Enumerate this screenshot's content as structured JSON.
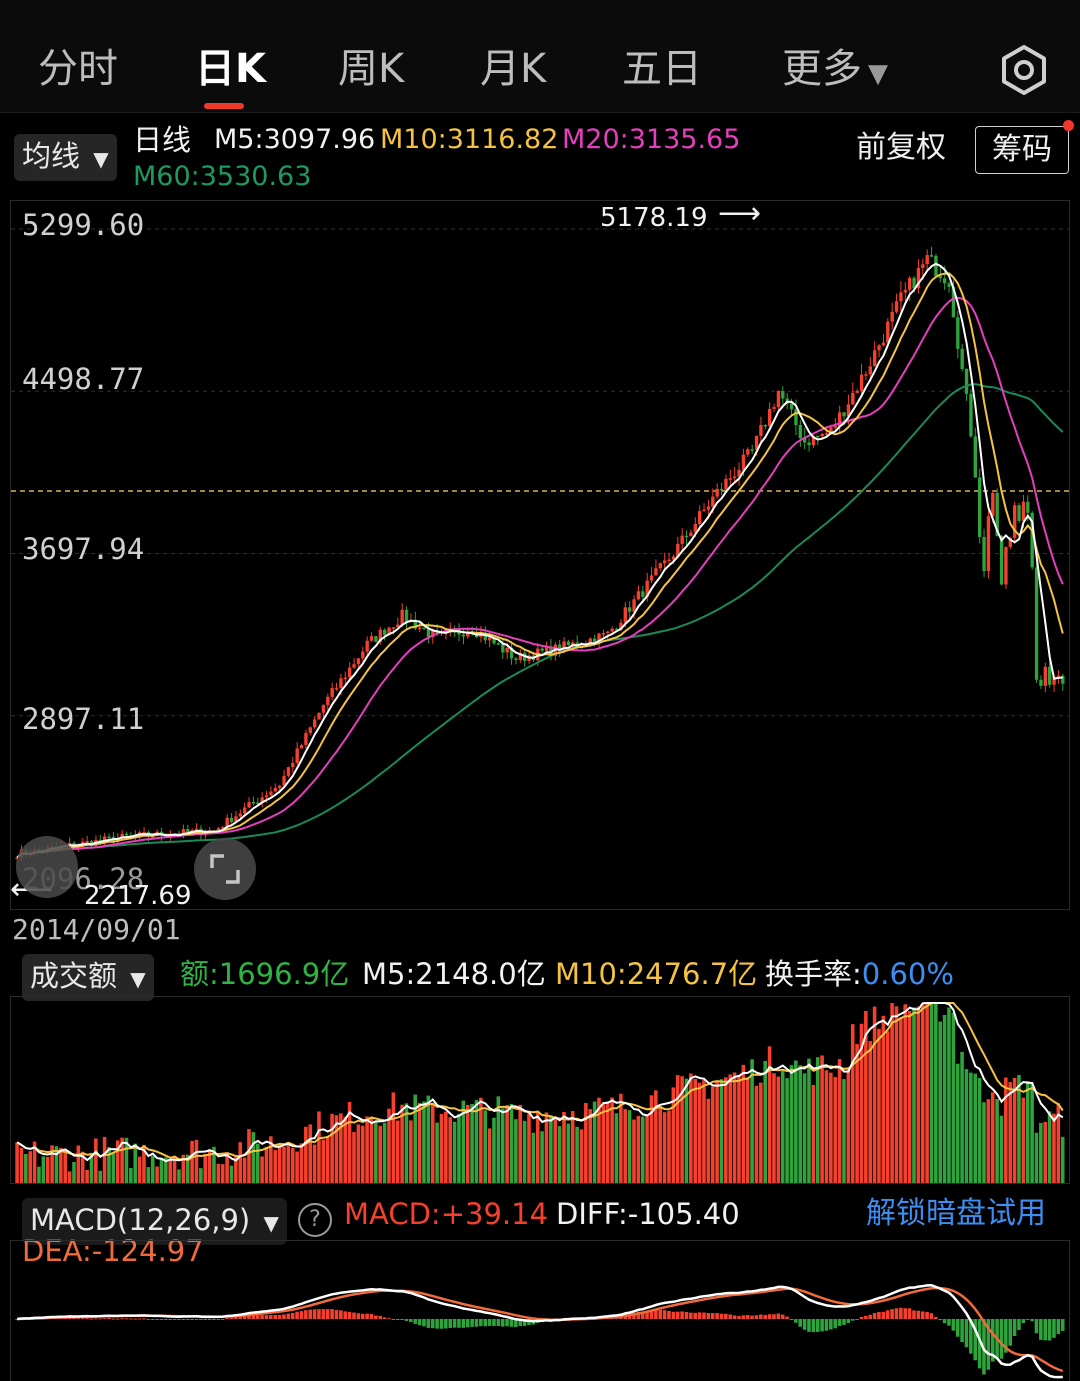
{
  "tabs": [
    {
      "label": "分时"
    },
    {
      "label": "日K"
    },
    {
      "label": "周K"
    },
    {
      "label": "月K"
    },
    {
      "label": "五日"
    },
    {
      "label": "更多"
    }
  ],
  "main_header": {
    "indicator_dropdown": "均线",
    "period_label": "日线",
    "ma5": "M5:3097.96",
    "ma10": "M10:3116.82",
    "ma20": "M20:3135.65",
    "ma60": "M60:3530.63",
    "adjust_label": "前复权",
    "chips_button": "筹码"
  },
  "price_axis": {
    "labels": [
      "5299.60",
      "4498.77",
      "3697.94",
      "2897.11",
      "2096.28"
    ],
    "high_marker": "5178.19",
    "low_marker": "2217.69",
    "start_date": "2014/09/01"
  },
  "volume_header": {
    "dropdown": "成交额",
    "amount": "额:1696.9亿",
    "m5": "M5:2148.0亿",
    "m10": "M10:2476.7亿",
    "turnover_label": "换手率:",
    "turnover_value": "0.60%"
  },
  "macd_header": {
    "dropdown": "MACD(12,26,9)",
    "help": "?",
    "macd": "MACD:+39.14",
    "diff": "DIFF:-105.40",
    "dea": "DEA:-124.97",
    "unlock": "解锁暗盘试用"
  },
  "colors": {
    "up": "#f4402c",
    "down": "#2fa33c",
    "ma5": "#ffffff",
    "ma10": "#f5c342",
    "ma20": "#e43fbd",
    "ma60": "#1b8a57",
    "accent_blue": "#3d8ef0"
  },
  "chart_data": {
    "type": "line",
    "x_start": "2014/09/01",
    "y_ticks": [
      5299.6,
      4498.77,
      3697.94,
      2897.11,
      2096.28
    ],
    "high": 5178.19,
    "low": 2217.69,
    "series": [
      {
        "name": "M5",
        "last": 3097.96
      },
      {
        "name": "M10",
        "last": 3116.82
      },
      {
        "name": "M20",
        "last": 3135.65
      },
      {
        "name": "M60",
        "last": 3530.63
      }
    ]
  }
}
